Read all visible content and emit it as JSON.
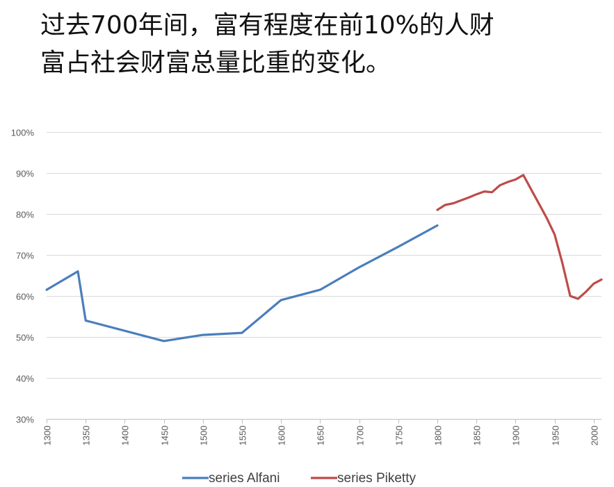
{
  "title_lines": [
    "过去700年间，富有程度在前10%的人财",
    "富占社会财富总量比重的变化。"
  ],
  "chart_data": {
    "type": "line",
    "title": "过去700年间，富有程度在前10%的人财富占社会财富总量比重的变化。",
    "xlabel": "",
    "ylabel": "",
    "xlim": [
      1300,
      2010
    ],
    "ylim": [
      30,
      100
    ],
    "xticks": [
      1300,
      1350,
      1400,
      1450,
      1500,
      1550,
      1600,
      1650,
      1700,
      1750,
      1800,
      1850,
      1900,
      1950,
      2000
    ],
    "yticks": [
      30,
      40,
      50,
      60,
      70,
      80,
      90,
      100
    ],
    "ytick_labels": [
      "30%",
      "40%",
      "50%",
      "60%",
      "70%",
      "80%",
      "90%",
      "100%"
    ],
    "grid": true,
    "legend_position": "bottom",
    "series": [
      {
        "name": "series Alfani",
        "color": "#4a7ebb",
        "x": [
          1300,
          1340,
          1350,
          1450,
          1500,
          1550,
          1600,
          1650,
          1700,
          1750,
          1800
        ],
        "y": [
          61.5,
          66,
          54,
          49,
          50.5,
          51,
          59,
          61.5,
          67,
          72,
          77.2
        ]
      },
      {
        "name": "series Piketty",
        "color": "#be4b48",
        "x": [
          1800,
          1810,
          1820,
          1830,
          1840,
          1850,
          1860,
          1870,
          1880,
          1890,
          1900,
          1910,
          1920,
          1930,
          1940,
          1950,
          1960,
          1970,
          1980,
          1990,
          2000,
          2010
        ],
        "y": [
          81,
          82.2,
          82.6,
          83.3,
          84,
          84.8,
          85.5,
          85.3,
          87,
          87.8,
          88.4,
          89.5,
          86,
          82.5,
          79,
          75,
          68,
          60,
          59.3,
          61,
          63,
          64
        ]
      }
    ]
  }
}
